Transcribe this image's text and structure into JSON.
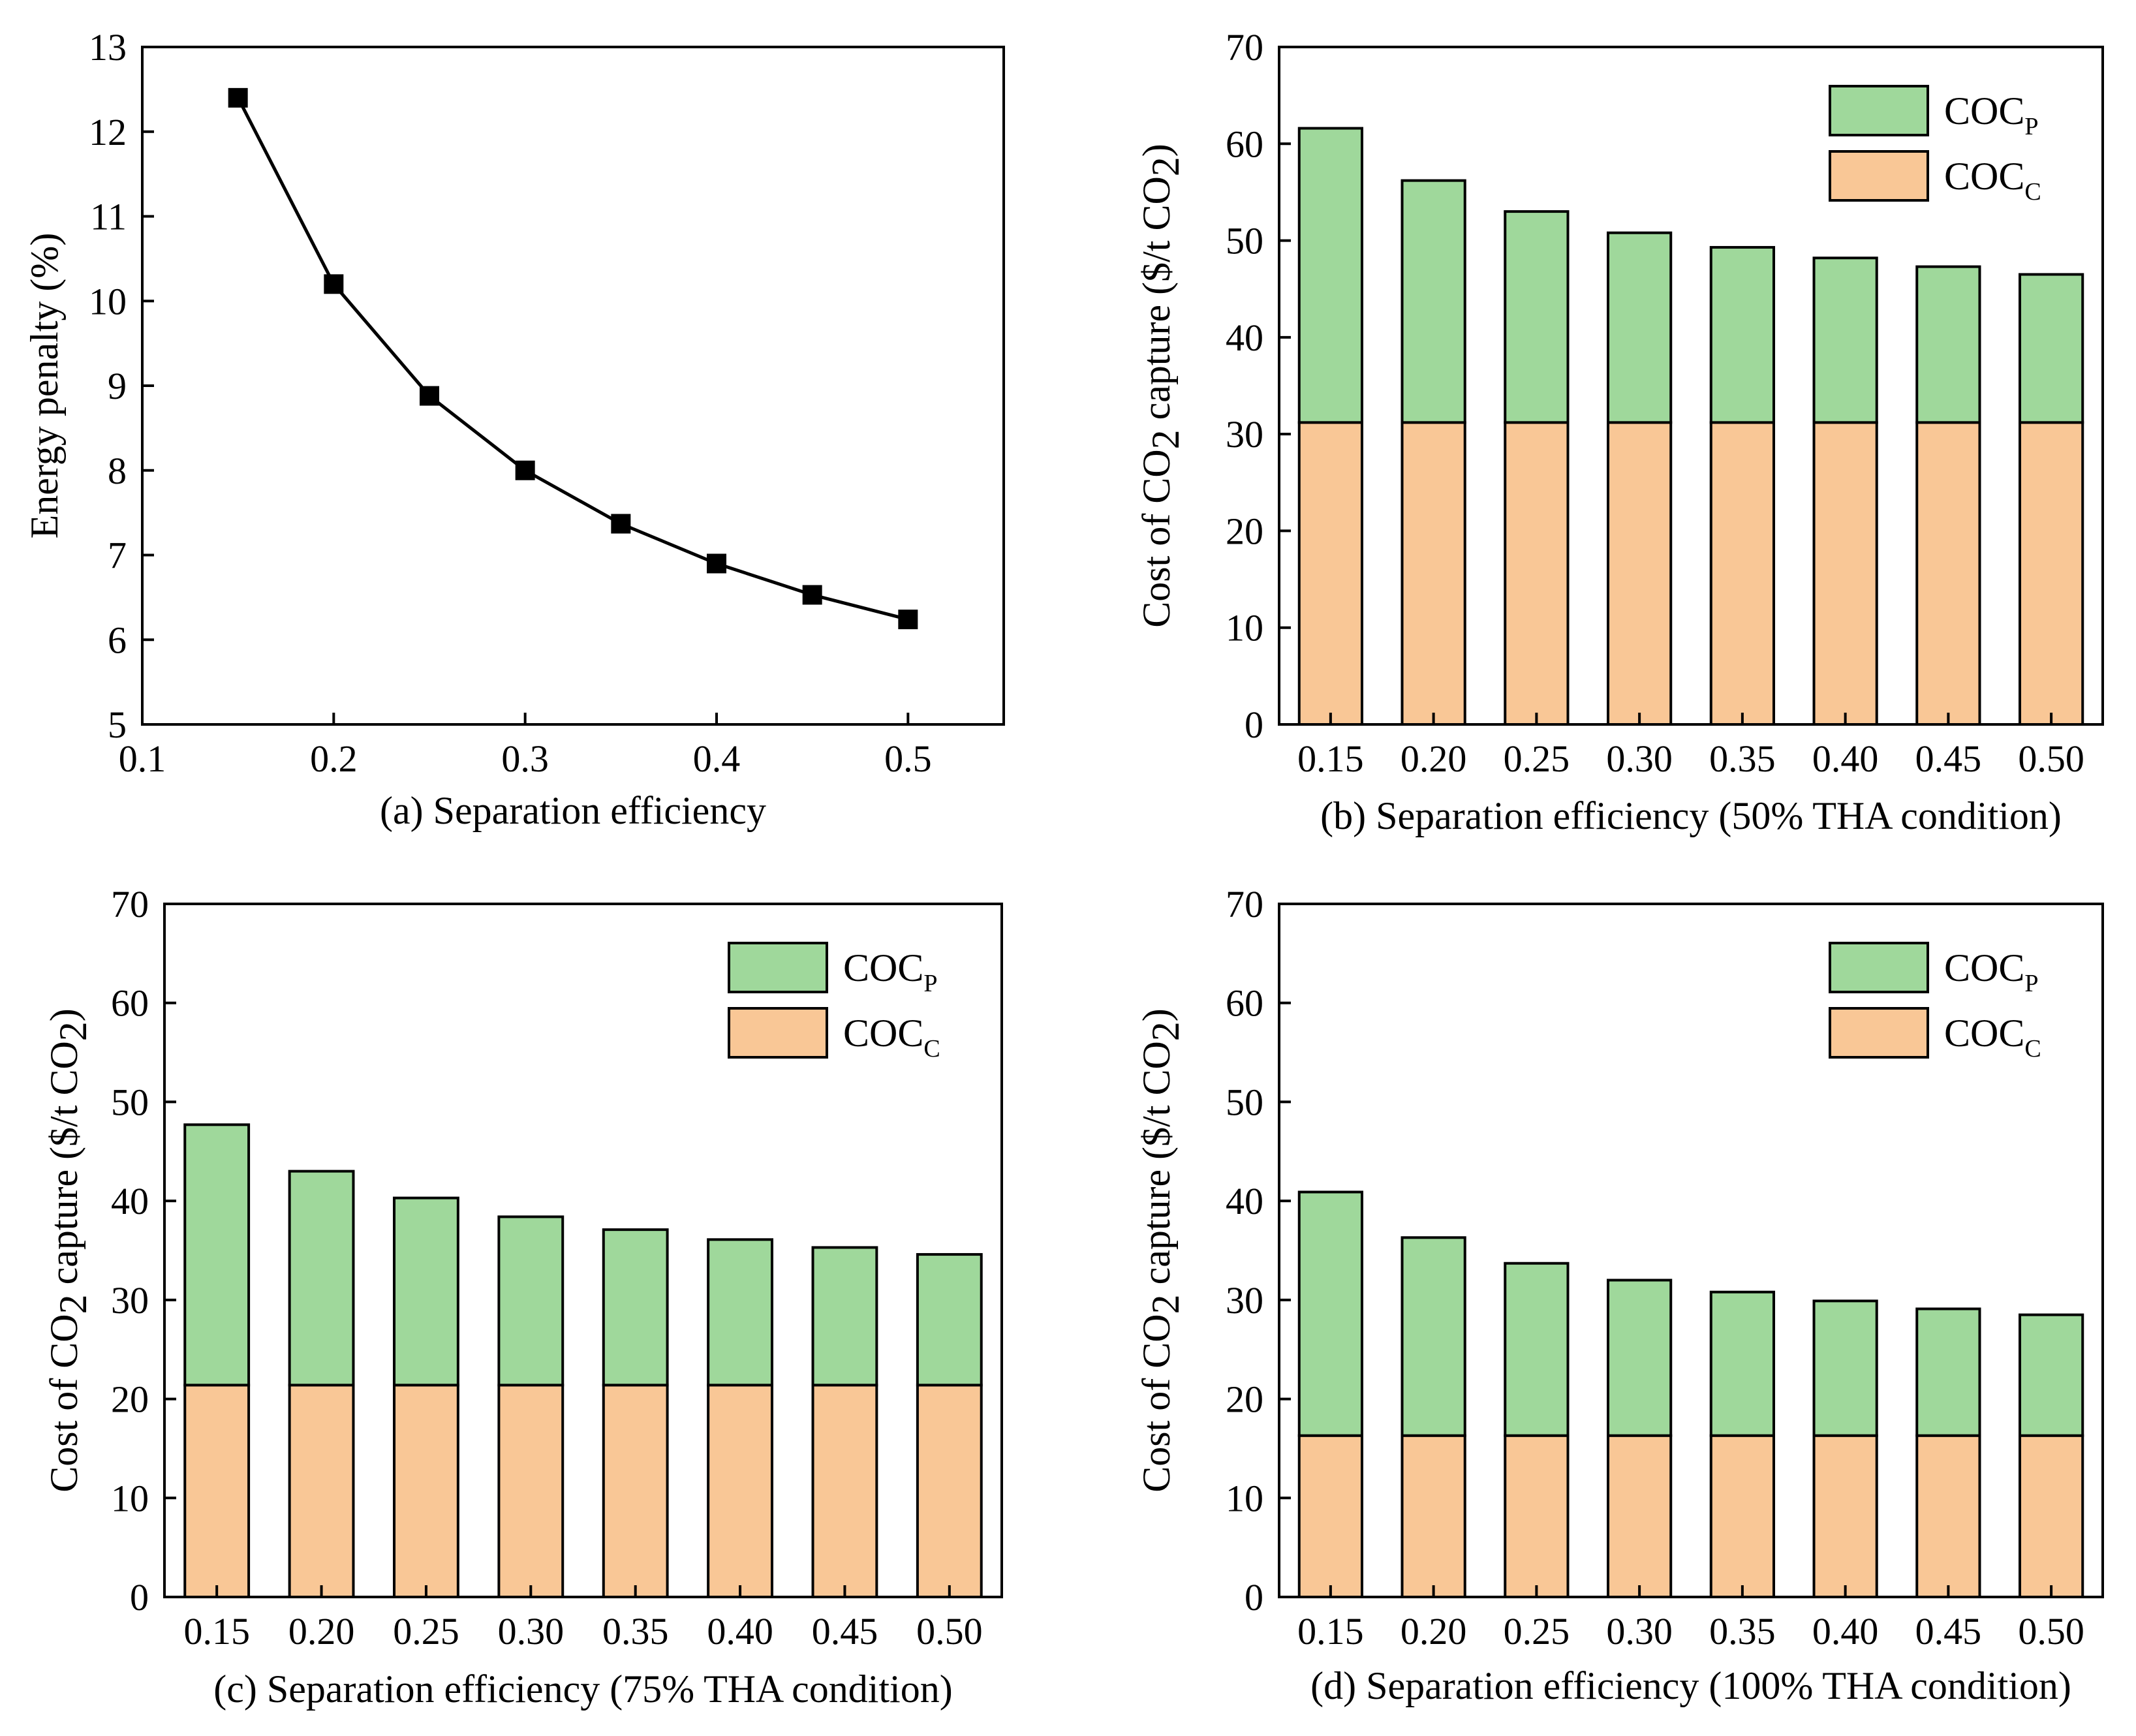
{
  "colors": {
    "coc_p": "#9fd89b",
    "coc_c": "#f9c796",
    "line": "#000000",
    "marker": "#000000"
  },
  "chart_data": [
    {
      "id": "a",
      "type": "line",
      "title": "",
      "xlabel": "(a) Separation efficiency",
      "ylabel": "Energy penalty (%)",
      "x": [
        0.15,
        0.2,
        0.25,
        0.3,
        0.35,
        0.4,
        0.45,
        0.5
      ],
      "y": [
        12.4,
        10.2,
        8.88,
        8.0,
        7.37,
        6.9,
        6.53,
        6.24
      ],
      "xlim": [
        0.1,
        0.55
      ],
      "ylim": [
        5,
        13
      ],
      "xticks": [
        "0.1",
        "0.2",
        "0.3",
        "0.4",
        "0.5"
      ],
      "yticks": [
        "5",
        "6",
        "7",
        "8",
        "9",
        "10",
        "11",
        "12",
        "13"
      ],
      "marker": "square"
    },
    {
      "id": "b",
      "type": "bar",
      "stacked": true,
      "xlabel": "(b) Separation efficiency (50% THA condition)",
      "ylabel": "Cost of CO2 capture ($/t CO2)",
      "ylabel_parts": {
        "pre": "Cost of CO",
        "sub": "2",
        "mid": " capture ($/t CO",
        "sub2": "2",
        "post": ")"
      },
      "categories": [
        "0.15",
        "0.20",
        "0.25",
        "0.30",
        "0.35",
        "0.40",
        "0.45",
        "0.50"
      ],
      "series": [
        {
          "name": "COC_C",
          "label": "COC",
          "label_sub": "C",
          "values": [
            31.2,
            31.2,
            31.2,
            31.2,
            31.2,
            31.2,
            31.2,
            31.2
          ]
        },
        {
          "name": "COC_P",
          "label": "COC",
          "label_sub": "P",
          "values": [
            30.4,
            25.0,
            21.8,
            19.6,
            18.1,
            17.0,
            16.1,
            15.3
          ]
        }
      ],
      "ylim": [
        0,
        70
      ],
      "yticks": [
        "0",
        "10",
        "20",
        "30",
        "40",
        "50",
        "60",
        "70"
      ],
      "legend": "top-right"
    },
    {
      "id": "c",
      "type": "bar",
      "stacked": true,
      "xlabel": "(c) Separation efficiency (75% THA condition)",
      "ylabel": "Cost of CO2 capture ($/t CO2)",
      "ylabel_parts": {
        "pre": "Cost of CO",
        "sub": "2",
        "mid": " capture ($/t CO",
        "sub2": "2",
        "post": ")"
      },
      "categories": [
        "0.15",
        "0.20",
        "0.25",
        "0.30",
        "0.35",
        "0.40",
        "0.45",
        "0.50"
      ],
      "series": [
        {
          "name": "COC_C",
          "label": "COC",
          "label_sub": "C",
          "values": [
            21.4,
            21.4,
            21.4,
            21.4,
            21.4,
            21.4,
            21.4,
            21.4
          ]
        },
        {
          "name": "COC_P",
          "label": "COC",
          "label_sub": "P",
          "values": [
            26.3,
            21.6,
            18.9,
            17.0,
            15.7,
            14.7,
            13.9,
            13.2
          ]
        }
      ],
      "ylim": [
        0,
        70
      ],
      "yticks": [
        "0",
        "10",
        "20",
        "30",
        "40",
        "50",
        "60",
        "70"
      ],
      "legend": "top-right"
    },
    {
      "id": "d",
      "type": "bar",
      "stacked": true,
      "xlabel": "(d) Separation efficiency (100% THA condition)",
      "ylabel": "Cost of CO2 capture ($/t CO2)",
      "ylabel_parts": {
        "pre": "Cost of CO",
        "sub": "2",
        "mid": " capture ($/t CO",
        "sub2": "2",
        "post": ")"
      },
      "categories": [
        "0.15",
        "0.20",
        "0.25",
        "0.30",
        "0.35",
        "0.40",
        "0.45",
        "0.50"
      ],
      "series": [
        {
          "name": "COC_C",
          "label": "COC",
          "label_sub": "C",
          "values": [
            16.3,
            16.3,
            16.3,
            16.3,
            16.3,
            16.3,
            16.3,
            16.3
          ]
        },
        {
          "name": "COC_P",
          "label": "COC",
          "label_sub": "P",
          "values": [
            24.6,
            20.0,
            17.4,
            15.7,
            14.5,
            13.6,
            12.8,
            12.2
          ]
        }
      ],
      "ylim": [
        0,
        70
      ],
      "yticks": [
        "0",
        "10",
        "20",
        "30",
        "40",
        "50",
        "60",
        "70"
      ],
      "legend": "top-right"
    }
  ]
}
